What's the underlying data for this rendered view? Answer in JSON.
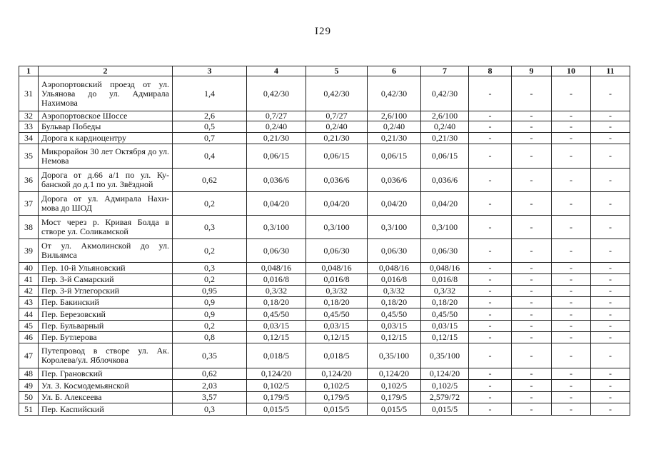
{
  "page_number": "I29",
  "header": [
    "1",
    "2",
    "3",
    "4",
    "5",
    "6",
    "7",
    "8",
    "9",
    "10",
    "11"
  ],
  "rows": [
    {
      "n": "31",
      "name": "Аэропортовский проезд от ул. Ульянова до ул. Адмирала Нахимова",
      "c3": "1,4",
      "c4": "0,42/30",
      "c5": "0,42/30",
      "c6": "0,42/30",
      "c7": "0,42/30",
      "c8": "-",
      "c9": "-",
      "c10": "-",
      "c11": "-"
    },
    {
      "n": "32",
      "name": "Аэропортовское Шоссе",
      "c3": "2,6",
      "c4": "0,7/27",
      "c5": "0,7/27",
      "c6": "2,6/100",
      "c7": "2,6/100",
      "c8": "-",
      "c9": "-",
      "c10": "-",
      "c11": "-"
    },
    {
      "n": "33",
      "name": "Бульвар Победы",
      "c3": "0,5",
      "c4": "0,2/40",
      "c5": "0,2/40",
      "c6": "0,2/40",
      "c7": "0,2/40",
      "c8": "-",
      "c9": "-",
      "c10": "-",
      "c11": "-"
    },
    {
      "n": "34",
      "name": "Дорога к кардиоцентру",
      "c3": "0,7",
      "c4": "0,21/30",
      "c5": "0,21/30",
      "c6": "0,21/30",
      "c7": "0,21/30",
      "c8": "-",
      "c9": "-",
      "c10": "-",
      "c11": "-"
    },
    {
      "n": "35",
      "name": "Микрорайон 30 лет Октября до ул. Немова",
      "c3": "0,4",
      "c4": "0,06/15",
      "c5": "0,06/15",
      "c6": "0,06/15",
      "c7": "0,06/15",
      "c8": "-",
      "c9": "-",
      "c10": "-",
      "c11": "-"
    },
    {
      "n": "36",
      "name": "Дорога от д.66 а/1 по ул. Ку-банской до д.1 по ул. Звёздной",
      "c3": "0,62",
      "c4": "0,036/6",
      "c5": "0,036/6",
      "c6": "0,036/6",
      "c7": "0,036/6",
      "c8": "-",
      "c9": "-",
      "c10": "-",
      "c11": "-"
    },
    {
      "n": "37",
      "name": "Дорога от ул. Адмирала Нахи-мова до ШОД",
      "c3": "0,2",
      "c4": "0,04/20",
      "c5": "0,04/20",
      "c6": "0,04/20",
      "c7": "0,04/20",
      "c8": "-",
      "c9": "-",
      "c10": "-",
      "c11": "-"
    },
    {
      "n": "38",
      "name": "Мост через р. Кривая Болда в створе ул. Соликамской",
      "c3": "0,3",
      "c4": "0,3/100",
      "c5": "0,3/100",
      "c6": "0,3/100",
      "c7": "0,3/100",
      "c8": "-",
      "c9": "-",
      "c10": "-",
      "c11": "-"
    },
    {
      "n": "39",
      "name": "От ул. Акмолинской до ул. Вильямса",
      "c3": "0,2",
      "c4": "0,06/30",
      "c5": "0,06/30",
      "c6": "0,06/30",
      "c7": "0,06/30",
      "c8": "-",
      "c9": "-",
      "c10": "-",
      "c11": "-"
    },
    {
      "n": "40",
      "name": "Пер. 10-й Ульяновский",
      "c3": "0,3",
      "c4": "0,048/16",
      "c5": "0,048/16",
      "c6": "0,048/16",
      "c7": "0,048/16",
      "c8": "-",
      "c9": "-",
      "c10": "-",
      "c11": "-"
    },
    {
      "n": "41",
      "name": "Пер. 3-й Самарский",
      "c3": "0,2",
      "c4": "0,016/8",
      "c5": "0,016/8",
      "c6": "0,016/8",
      "c7": "0,016/8",
      "c8": "-",
      "c9": "-",
      "c10": "-",
      "c11": "-"
    },
    {
      "n": "42",
      "name": "Пер. 3-й Углегорский",
      "c3": "0,95",
      "c4": "0,3/32",
      "c5": "0,3/32",
      "c6": "0,3/32",
      "c7": "0,3/32",
      "c8": "-",
      "c9": "-",
      "c10": "-",
      "c11": "-"
    },
    {
      "n": "43",
      "name": "Пер. Бакинский",
      "c3": "0,9",
      "c4": "0,18/20",
      "c5": "0,18/20",
      "c6": "0,18/20",
      "c7": "0,18/20",
      "c8": "-",
      "c9": "-",
      "c10": "-",
      "c11": "-"
    },
    {
      "n": "44",
      "name": "Пер. Березовский",
      "c3": "0,9",
      "c4": "0,45/50",
      "c5": "0,45/50",
      "c6": "0,45/50",
      "c7": "0,45/50",
      "c8": "-",
      "c9": "-",
      "c10": "-",
      "c11": "-"
    },
    {
      "n": "45",
      "name": "Пер. Бульварный",
      "c3": "0,2",
      "c4": "0,03/15",
      "c5": "0,03/15",
      "c6": "0,03/15",
      "c7": "0,03/15",
      "c8": "-",
      "c9": "-",
      "c10": "-",
      "c11": "-"
    },
    {
      "n": "46",
      "name": "Пер. Бутлерова",
      "c3": "0,8",
      "c4": "0,12/15",
      "c5": "0,12/15",
      "c6": "0,12/15",
      "c7": "0,12/15",
      "c8": "-",
      "c9": "-",
      "c10": "-",
      "c11": "-"
    },
    {
      "n": "47",
      "name": "Путепровод в створе ул. Ак. Королева/ул. Яблочкова",
      "c3": "0,35",
      "c4": "0,018/5",
      "c5": "0,018/5",
      "c6": "0,35/100",
      "c7": "0,35/100",
      "c8": "-",
      "c9": "-",
      "c10": "-",
      "c11": "-"
    },
    {
      "n": "48",
      "name": "Пер. Грановский",
      "c3": "0,62",
      "c4": "0,124/20",
      "c5": "0,124/20",
      "c6": "0,124/20",
      "c7": "0,124/20",
      "c8": "-",
      "c9": "-",
      "c10": "-",
      "c11": "-"
    },
    {
      "n": "49",
      "name": "Ул. З. Космодемьянской",
      "c3": "2,03",
      "c4": "0,102/5",
      "c5": "0,102/5",
      "c6": "0,102/5",
      "c7": "0,102/5",
      "c8": "-",
      "c9": "-",
      "c10": "-",
      "c11": "-"
    },
    {
      "n": "50",
      "name": "Ул. Б. Алексеева",
      "c3": "3,57",
      "c4": "0,179/5",
      "c5": "0,179/5",
      "c6": "0,179/5",
      "c7": "2,579/72",
      "c8": "-",
      "c9": "-",
      "c10": "-",
      "c11": "-"
    },
    {
      "n": "51",
      "name": "Пер. Каспийский",
      "c3": "0,3",
      "c4": "0,015/5",
      "c5": "0,015/5",
      "c6": "0,015/5",
      "c7": "0,015/5",
      "c8": "-",
      "c9": "-",
      "c10": "-",
      "c11": "-"
    }
  ]
}
